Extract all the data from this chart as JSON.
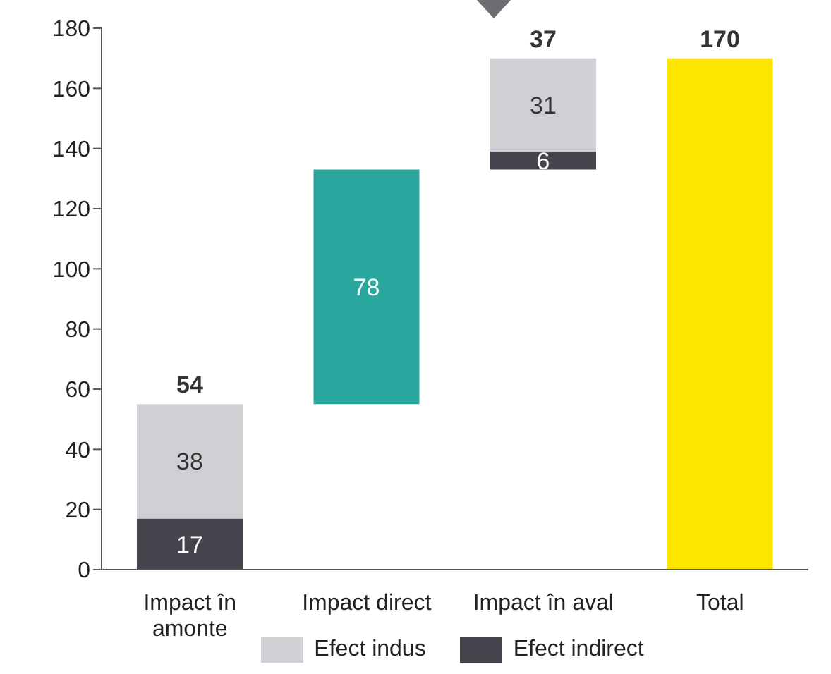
{
  "chart_data": {
    "type": "bar",
    "categories": [
      "Impact în amonte",
      "Impact direct",
      "Impact în aval",
      "Total"
    ],
    "series": [
      {
        "name": "Efect indirect",
        "color": "#45444c",
        "values": [
          17,
          null,
          6,
          null
        ],
        "base": [
          0,
          null,
          133,
          null
        ],
        "value_labels": [
          "17",
          null,
          "6",
          null
        ]
      },
      {
        "name": "Efect indus",
        "color": "#d0d0d4",
        "values": [
          38,
          null,
          31,
          null
        ],
        "base": [
          17,
          null,
          139,
          null
        ],
        "value_labels": [
          "38",
          null,
          "31",
          null
        ]
      },
      {
        "color": "#2aa8a0",
        "values": [
          null,
          78,
          null,
          null
        ],
        "base": [
          null,
          55,
          null,
          null
        ],
        "value_labels": [
          null,
          "78",
          null,
          null
        ]
      },
      {
        "color": "#ffe600",
        "values": [
          null,
          null,
          null,
          170
        ],
        "base": [
          null,
          null,
          null,
          0
        ]
      }
    ],
    "totals": [
      "54",
      null,
      "37",
      "170"
    ],
    "ylim": [
      0,
      180
    ],
    "yticks": [
      0,
      20,
      40,
      60,
      80,
      100,
      120,
      140,
      160,
      180
    ],
    "legend": "bottom"
  }
}
